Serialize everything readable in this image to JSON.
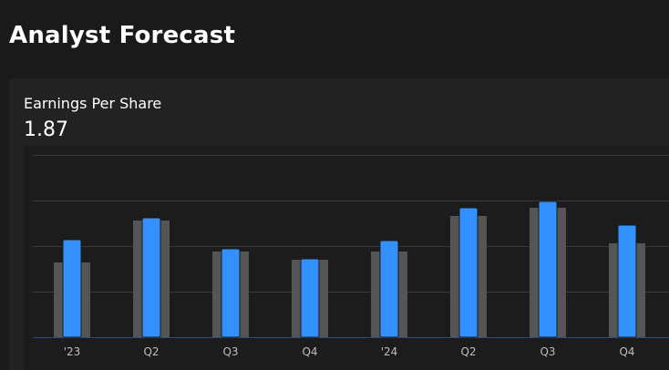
{
  "header": {
    "title": "Analyst Forecast"
  },
  "metric": {
    "label": "Earnings Per Share",
    "value": "1.87"
  },
  "colors": {
    "background": "#1a1a1a",
    "card": "#222222",
    "estimate_bar": "#555555",
    "actual_bar": "#3391ff",
    "gridline": "#3a3a3a",
    "baseline": "#2a4a80"
  },
  "chart_data": {
    "type": "bar",
    "categories": [
      "'23",
      "Q2",
      "Q3",
      "Q4",
      "'24",
      "Q2",
      "Q3",
      "Q4"
    ],
    "series": [
      {
        "values": [
          0.82,
          1.28,
          0.94,
          0.85,
          0.94,
          1.33,
          1.42,
          1.03
        ]
      },
      {
        "values": [
          1.07,
          1.31,
          0.97,
          0.86,
          1.06,
          1.42,
          1.49,
          1.23
        ]
      }
    ],
    "ylim": [
      0,
      2
    ],
    "grid": true,
    "legend": "none"
  }
}
